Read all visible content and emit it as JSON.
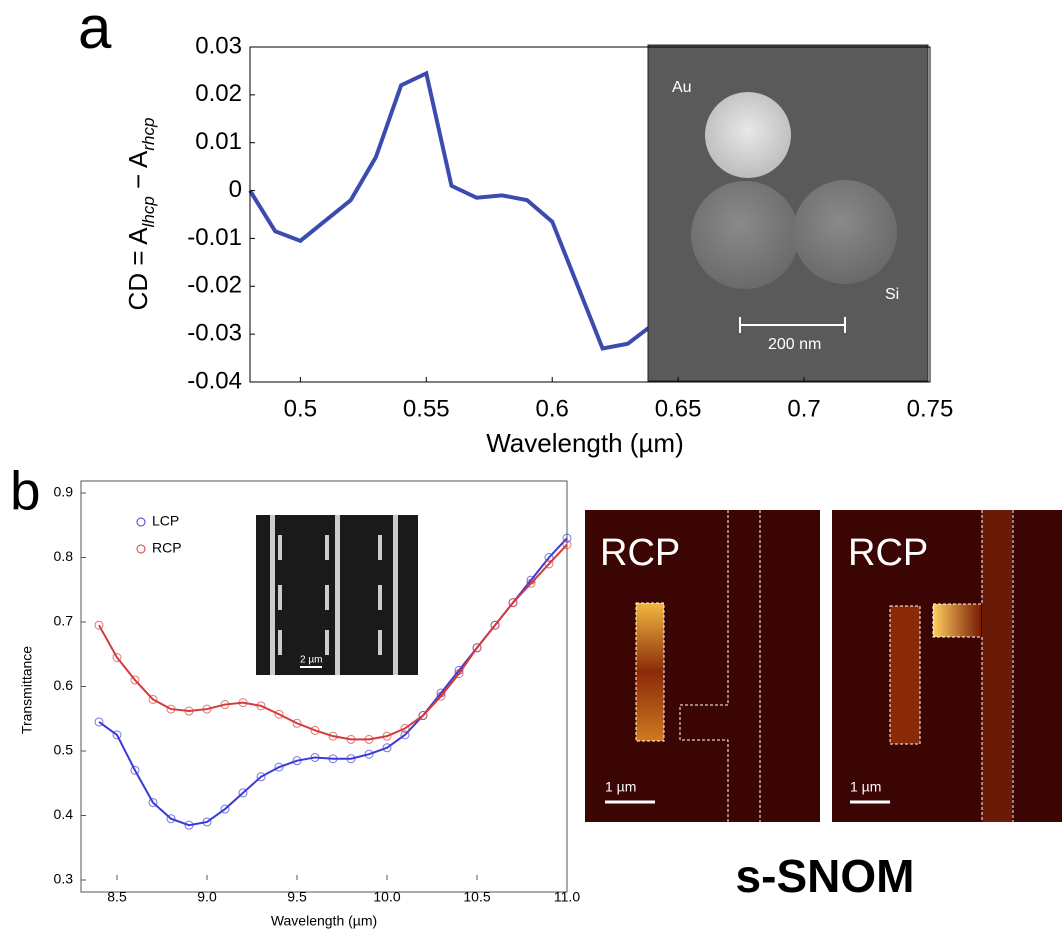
{
  "chart_data": [
    {
      "type": "line",
      "panel_label": "a",
      "xlabel": "Wavelength (µm)",
      "ylabel_parts": [
        "CD = A",
        "lhcp",
        " − A",
        "rhcp"
      ],
      "x": [
        0.48,
        0.49,
        0.5,
        0.52,
        0.53,
        0.54,
        0.55,
        0.56,
        0.57,
        0.58,
        0.59,
        0.6,
        0.62,
        0.63,
        0.64
      ],
      "values": [
        0,
        -0.0085,
        -0.0105,
        -0.002,
        0.007,
        0.022,
        0.0245,
        0.001,
        -0.0015,
        -0.001,
        -0.002,
        -0.0065,
        -0.033,
        -0.032,
        -0.028
      ],
      "color": "#3b4bb0",
      "xlim": [
        0.48,
        0.75
      ],
      "xticks": [
        0.5,
        0.55,
        0.6,
        0.65,
        0.7,
        0.75
      ],
      "ylim": [
        -0.04,
        0.03
      ],
      "yticks": [
        0.03,
        0.02,
        0.01,
        0,
        -0.01,
        -0.02,
        -0.03,
        -0.04
      ],
      "inset_labels": [
        "Au",
        "Si",
        "200 nm"
      ]
    },
    {
      "type": "scatter",
      "panel_label": "b",
      "xlabel": "Wavelength (µm)",
      "ylabel": "Transmittance",
      "x": [
        8.4,
        8.5,
        8.6,
        8.7,
        8.8,
        8.9,
        9.0,
        9.1,
        9.2,
        9.3,
        9.4,
        9.5,
        9.6,
        9.7,
        9.8,
        9.9,
        10.0,
        10.1,
        10.2,
        10.3,
        10.4,
        10.5,
        10.6,
        10.7,
        10.8,
        10.9,
        11.0
      ],
      "series": [
        {
          "name": "LCP",
          "color": "#3a3ad6",
          "values": [
            0.545,
            0.525,
            0.47,
            0.42,
            0.395,
            0.385,
            0.39,
            0.41,
            0.435,
            0.46,
            0.475,
            0.485,
            0.49,
            0.488,
            0.488,
            0.495,
            0.505,
            0.525,
            0.555,
            0.59,
            0.625,
            0.66,
            0.695,
            0.73,
            0.765,
            0.8,
            0.83
          ]
        },
        {
          "name": "RCP",
          "color": "#d63a3a",
          "values": [
            0.695,
            0.645,
            0.61,
            0.58,
            0.565,
            0.562,
            0.565,
            0.572,
            0.575,
            0.57,
            0.557,
            0.543,
            0.532,
            0.523,
            0.518,
            0.518,
            0.523,
            0.535,
            0.555,
            0.585,
            0.62,
            0.66,
            0.695,
            0.73,
            0.76,
            0.79,
            0.82
          ]
        }
      ],
      "xlim": [
        8.3,
        11.0
      ],
      "xticks": [
        8.5,
        {
          "value": 9,
          "label": "9.0"
        },
        9.5,
        {
          "value": 10,
          "label": "10.0"
        },
        10.5,
        {
          "value": 11,
          "label": "11.0"
        }
      ],
      "ylim": [
        0.3,
        0.9
      ],
      "yticks": [
        0.3,
        0.4,
        0.5,
        0.6,
        0.7,
        0.8,
        0.9
      ],
      "inset_labels": [
        "2 µm"
      ]
    }
  ],
  "snom": {
    "images": [
      {
        "label": "RCP",
        "scale": "1 µm"
      },
      {
        "label": "RCP",
        "scale": "1 µm"
      }
    ],
    "title": "s-SNOM"
  }
}
